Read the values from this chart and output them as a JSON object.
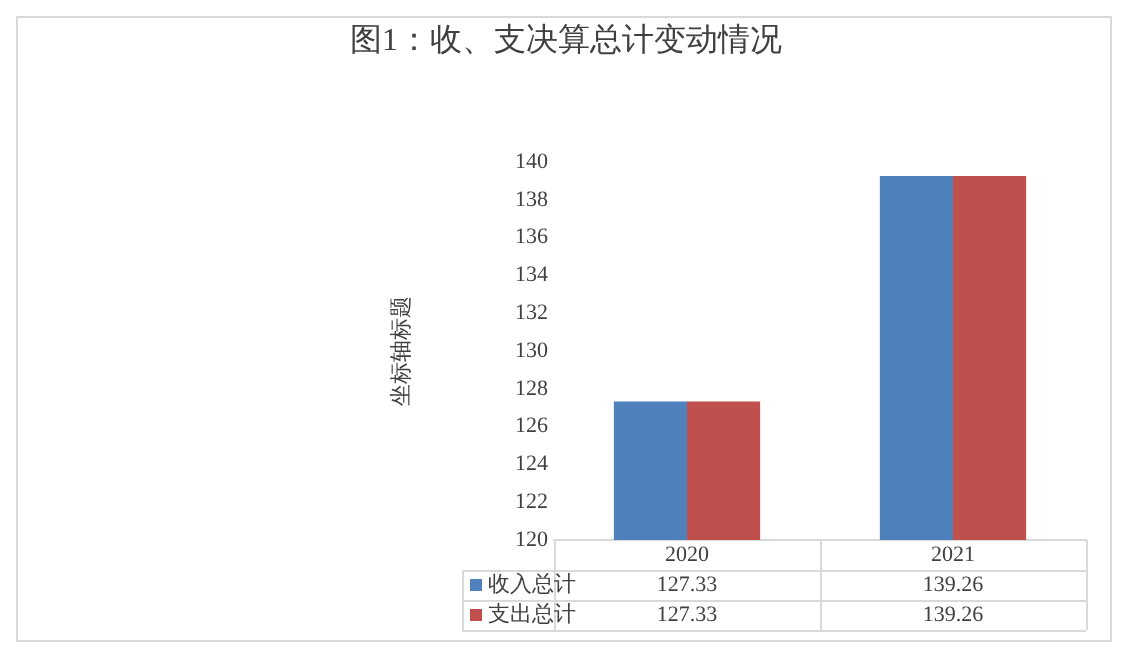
{
  "chart_data": {
    "type": "bar",
    "title": "图1：收、支决算总计变动情况",
    "ylabel": "坐标轴标题",
    "categories": [
      "2020",
      "2021"
    ],
    "series": [
      {
        "name": "收入总计",
        "color": "#4f81bd",
        "values": [
          127.33,
          139.26
        ]
      },
      {
        "name": "支出总计",
        "color": "#c0504d",
        "values": [
          127.33,
          139.26
        ]
      }
    ],
    "ylim": [
      120,
      140
    ],
    "yticks": [
      120,
      122,
      124,
      126,
      128,
      130,
      132,
      134,
      136,
      138,
      140
    ],
    "grid": false,
    "data_labels": true,
    "legend": "bottom"
  }
}
